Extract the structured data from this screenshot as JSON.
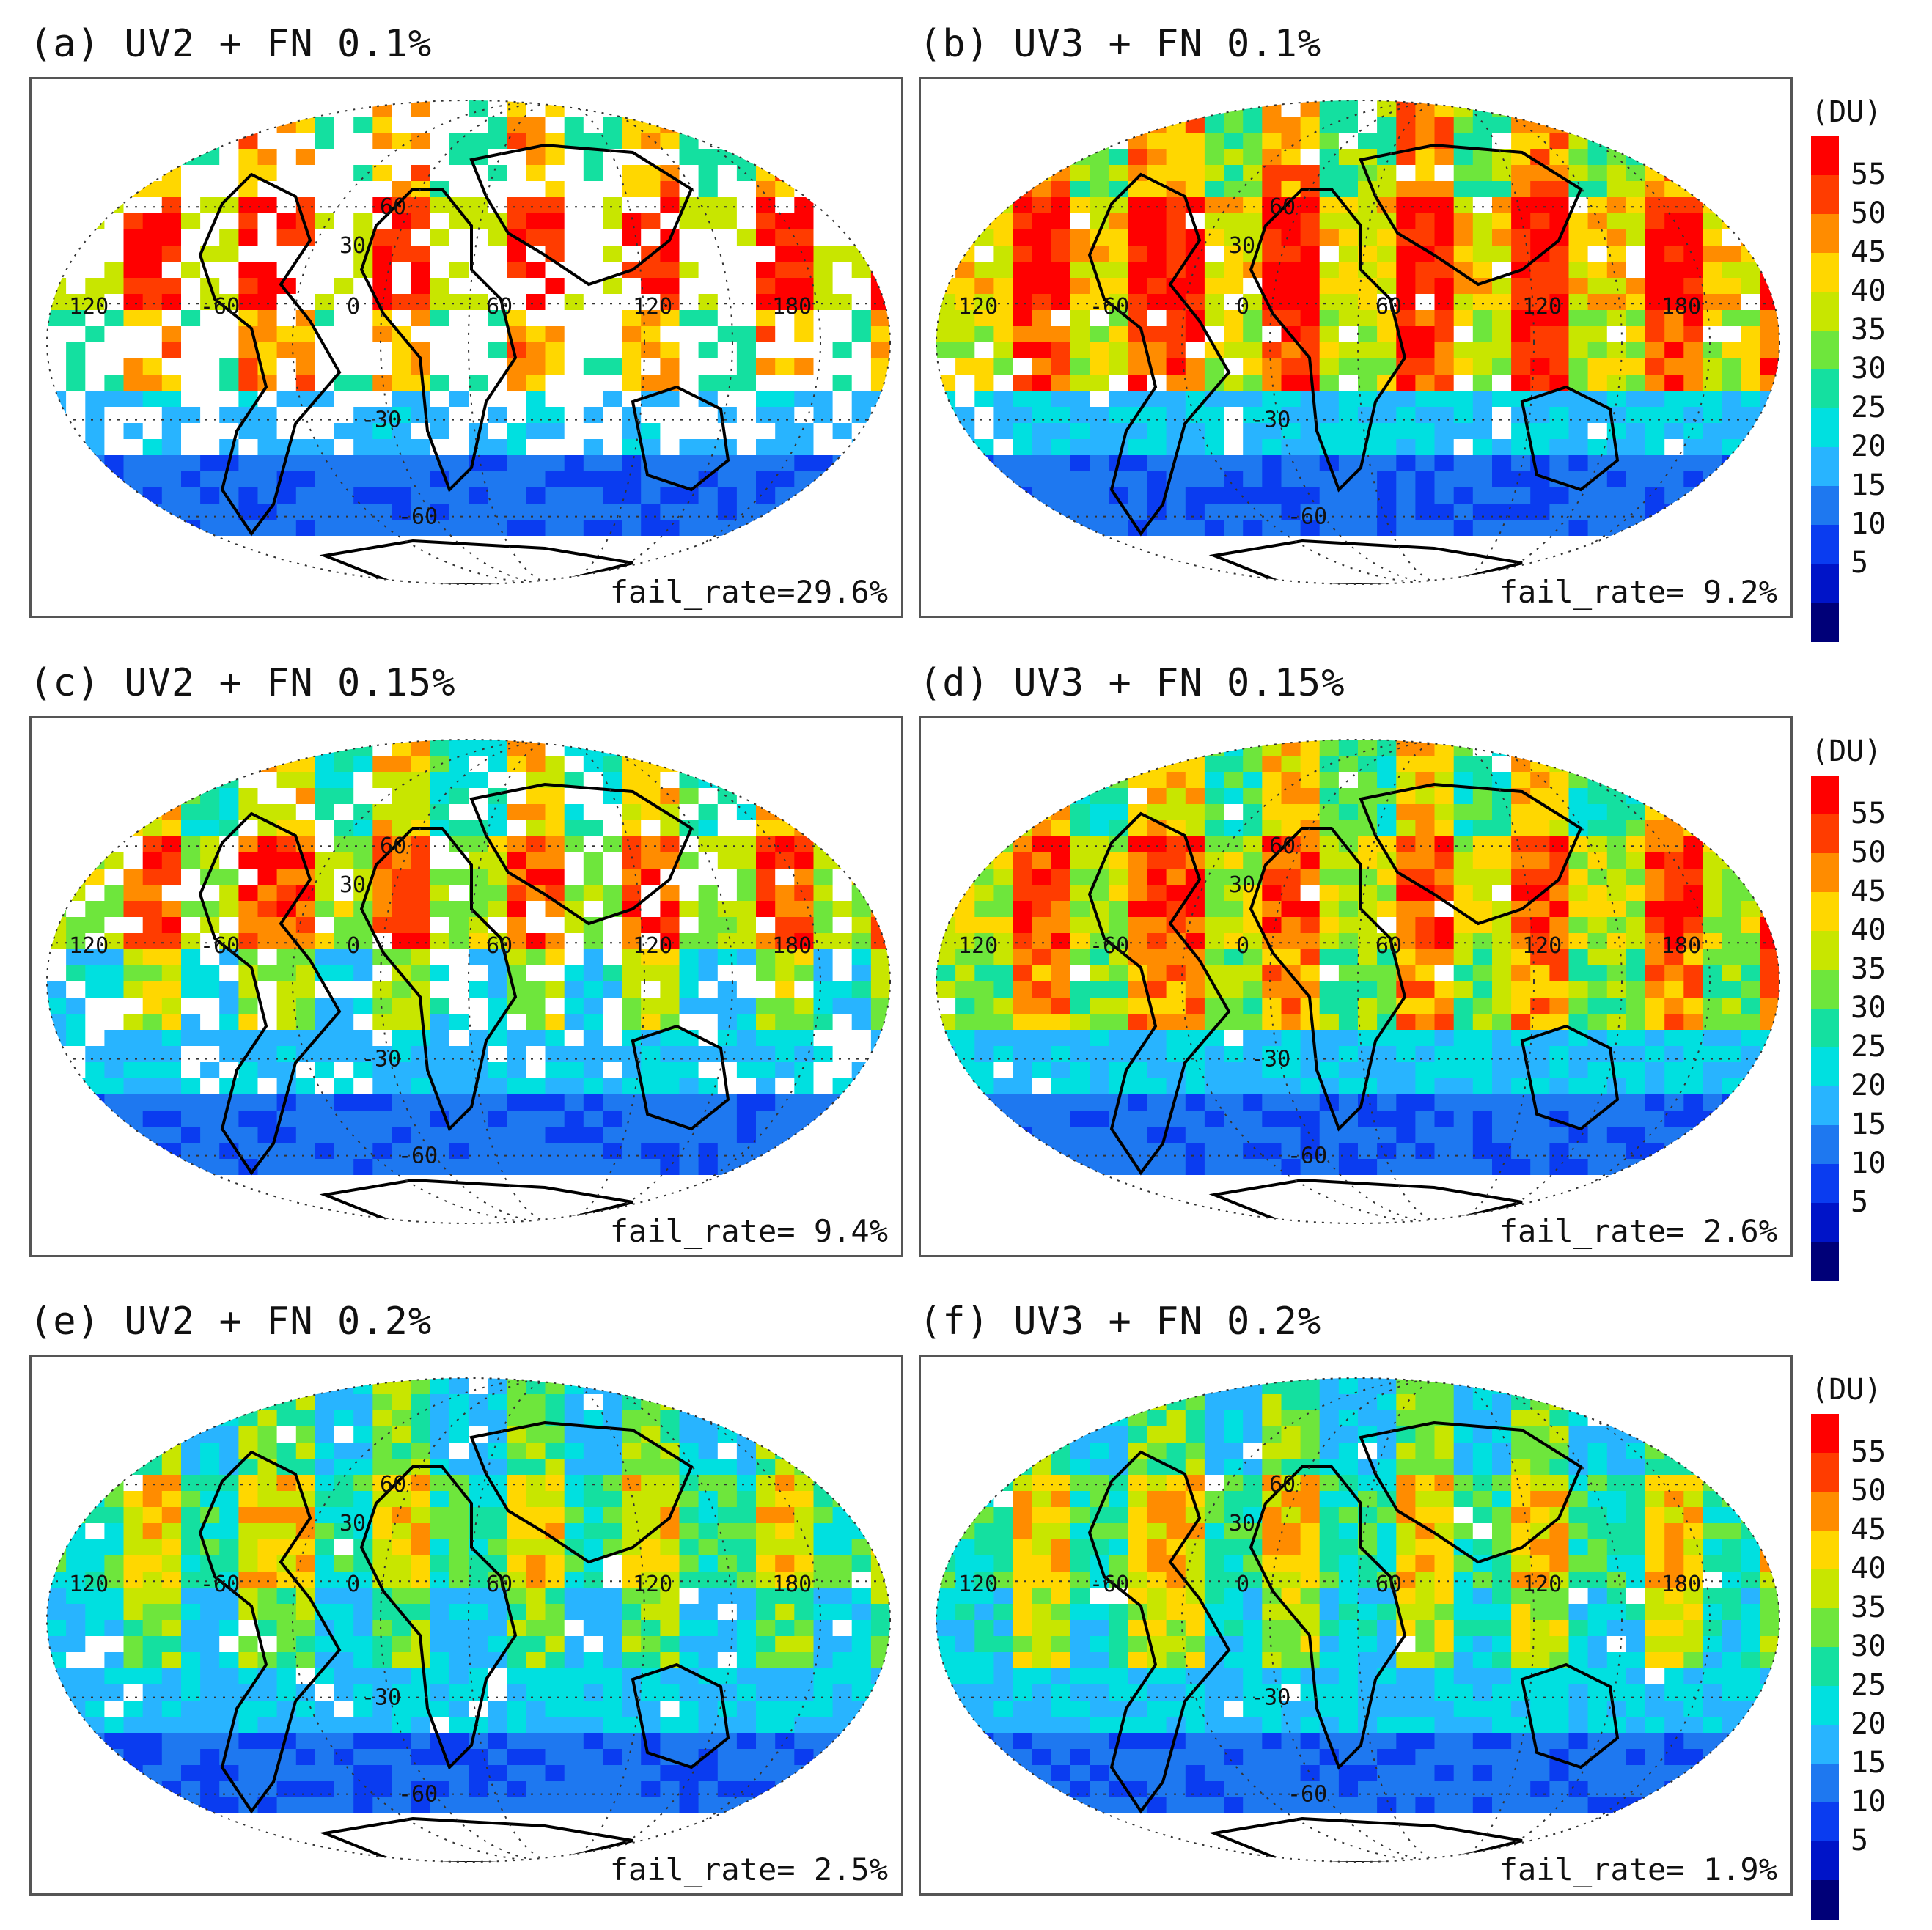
{
  "panels": [
    {
      "label": "(a) UV2 + FN 0.1%",
      "fail": "fail_rate=29.6%",
      "scheme": "a"
    },
    {
      "label": "(b) UV3 + FN 0.1%",
      "fail": "fail_rate= 9.2%",
      "scheme": "b"
    },
    {
      "label": "(c) UV2 + FN 0.15%",
      "fail": "fail_rate= 9.4%",
      "scheme": "c"
    },
    {
      "label": "(d) UV3 + FN 0.15%",
      "fail": "fail_rate= 2.6%",
      "scheme": "d"
    },
    {
      "label": "(e) UV2 + FN 0.2%",
      "fail": "fail_rate= 2.5%",
      "scheme": "e"
    },
    {
      "label": "(f) UV3 + FN 0.2%",
      "fail": "fail_rate= 1.9%",
      "scheme": "f"
    }
  ],
  "map_labels": {
    "lon": [
      "120",
      "-60",
      "0",
      "60",
      "120",
      "180"
    ],
    "lat": [
      "60",
      "30",
      "-30",
      "-60"
    ]
  },
  "colorbar": {
    "unit": "(DU)",
    "ticks": [
      "55",
      "50",
      "45",
      "40",
      "35",
      "30",
      "25",
      "20",
      "15",
      "10",
      "5"
    ],
    "colors": [
      "#ff0000",
      "#ff3c00",
      "#ff8c00",
      "#ffd700",
      "#c8e600",
      "#6ee63c",
      "#14e0a0",
      "#00e0e0",
      "#28b4ff",
      "#1e78f0",
      "#0a3cf0",
      "#0014c8",
      "#000078"
    ]
  }
}
